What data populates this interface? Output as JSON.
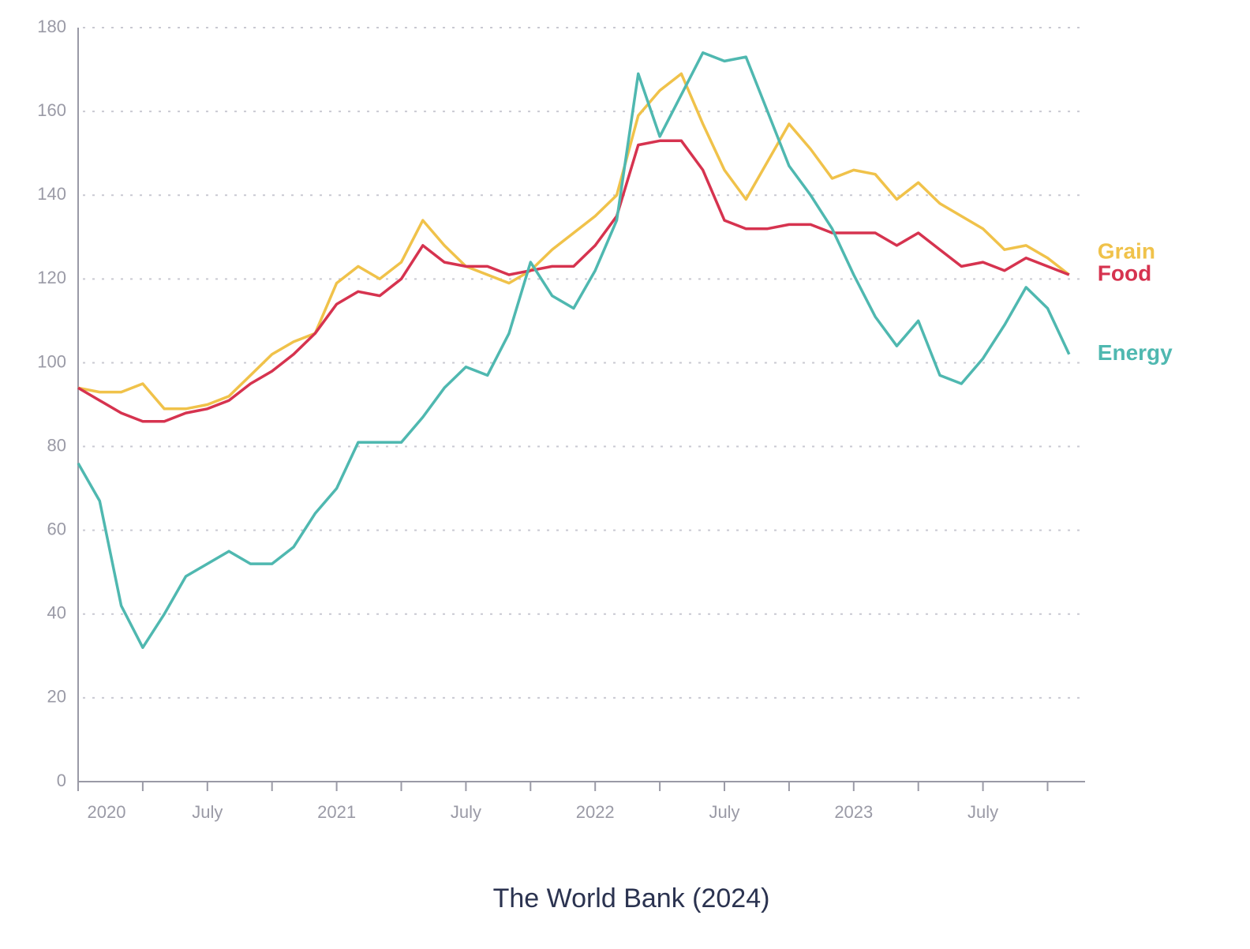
{
  "chart_data": {
    "type": "line",
    "source": "The World Bank (2024)",
    "x": [
      "2020-01",
      "2020-02",
      "2020-03",
      "2020-04",
      "2020-05",
      "2020-06",
      "2020-07",
      "2020-08",
      "2020-09",
      "2020-10",
      "2020-11",
      "2020-12",
      "2021-01",
      "2021-02",
      "2021-03",
      "2021-04",
      "2021-05",
      "2021-06",
      "2021-07",
      "2021-08",
      "2021-09",
      "2021-10",
      "2021-11",
      "2021-12",
      "2022-01",
      "2022-02",
      "2022-03",
      "2022-04",
      "2022-05",
      "2022-06",
      "2022-07",
      "2022-08",
      "2022-09",
      "2022-10",
      "2022-11",
      "2022-12",
      "2023-01",
      "2023-02",
      "2023-03",
      "2023-04",
      "2023-05",
      "2023-06",
      "2023-07",
      "2023-08",
      "2023-09",
      "2023-10",
      "2023-11"
    ],
    "xticks": [
      {
        "value": "2020-01",
        "label": "2020"
      },
      {
        "value": "2020-07",
        "label": "July"
      },
      {
        "value": "2021-01",
        "label": "2021"
      },
      {
        "value": "2021-07",
        "label": "July"
      },
      {
        "value": "2022-01",
        "label": "2022"
      },
      {
        "value": "2022-07",
        "label": "July"
      },
      {
        "value": "2023-01",
        "label": "2023"
      },
      {
        "value": "2023-07",
        "label": "July"
      }
    ],
    "ylim": [
      0,
      180
    ],
    "yticks": [
      0,
      20,
      40,
      60,
      80,
      100,
      120,
      140,
      160,
      180
    ],
    "grid": true,
    "series": [
      {
        "name": "Grain",
        "color": "#f0c24a",
        "values": [
          94,
          93,
          93,
          95,
          89,
          89,
          90,
          92,
          97,
          102,
          105,
          107,
          119,
          123,
          120,
          124,
          134,
          128,
          123,
          121,
          119,
          122,
          127,
          131,
          135,
          140,
          159,
          165,
          169,
          157,
          146,
          139,
          148,
          157,
          151,
          144,
          146,
          145,
          139,
          143,
          138,
          135,
          132,
          127,
          128,
          125,
          121
        ]
      },
      {
        "name": "Food",
        "color": "#d6334f",
        "values": [
          94,
          91,
          88,
          86,
          86,
          88,
          89,
          91,
          95,
          98,
          102,
          107,
          114,
          117,
          116,
          120,
          128,
          124,
          123,
          123,
          121,
          122,
          123,
          123,
          128,
          135,
          152,
          153,
          153,
          146,
          134,
          132,
          132,
          133,
          133,
          131,
          131,
          131,
          128,
          131,
          127,
          123,
          124,
          122,
          125,
          123,
          121
        ]
      },
      {
        "name": "Energy",
        "color": "#4fb8b0",
        "values": [
          76,
          67,
          42,
          32,
          40,
          49,
          52,
          55,
          52,
          52,
          56,
          64,
          70,
          81,
          81,
          81,
          87,
          94,
          99,
          97,
          107,
          124,
          116,
          113,
          122,
          134,
          169,
          154,
          164,
          174,
          172,
          173,
          160,
          147,
          140,
          132,
          121,
          111,
          104,
          110,
          97,
          95,
          101,
          109,
          118,
          113,
          102
        ]
      }
    ]
  }
}
